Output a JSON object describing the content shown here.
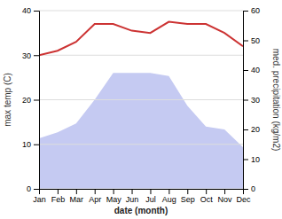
{
  "chart_data": {
    "type": "line",
    "categories": [
      "Jan",
      "Feb",
      "Mar",
      "Apr",
      "May",
      "Jun",
      "Jul",
      "Aug",
      "Sep",
      "Oct",
      "Nov",
      "Dec"
    ],
    "xlabel": "date (month)",
    "ylabel": "max temp (C)",
    "y2label": "med. precipitation (kg/m2)",
    "ylim": [
      0,
      40
    ],
    "yticks": [
      0,
      10,
      20,
      30,
      40
    ],
    "y2lim": [
      0,
      60
    ],
    "y2ticks": [
      0,
      10,
      20,
      30,
      40,
      50,
      60
    ],
    "grid": true,
    "series": [
      {
        "type": "area",
        "axis": "y2",
        "color": "#c5caf2",
        "values": [
          17,
          19,
          22,
          30,
          39,
          39,
          39,
          38,
          28,
          21,
          20,
          14
        ]
      },
      {
        "type": "line",
        "color": "#cc3333",
        "values": [
          30,
          31,
          33,
          37,
          37,
          35.5,
          35,
          37.5,
          37,
          37,
          35,
          32
        ]
      }
    ]
  }
}
